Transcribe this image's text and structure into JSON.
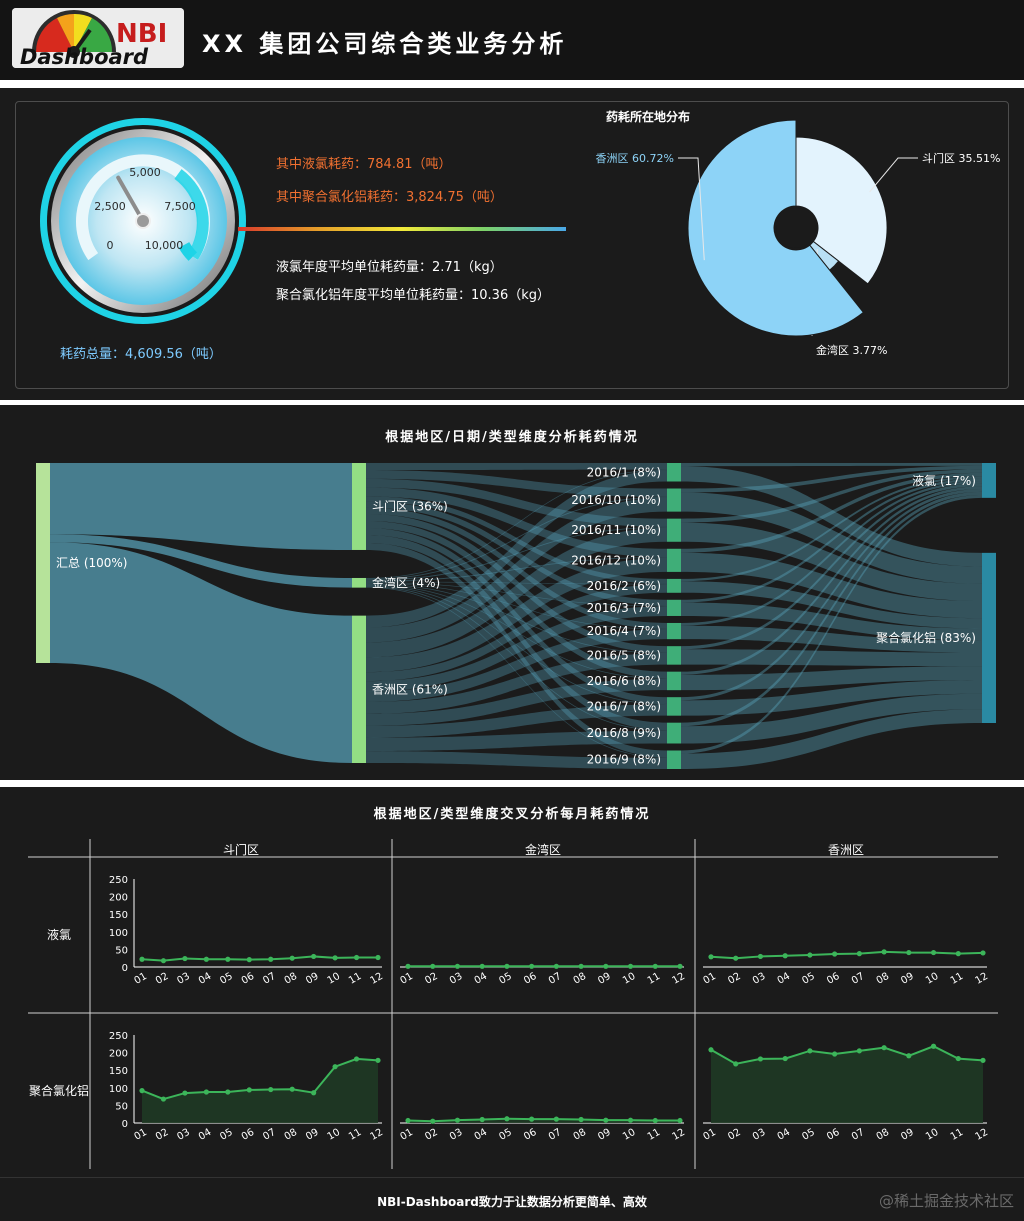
{
  "header": {
    "title": "XX 集团公司综合类业务分析",
    "logo_top": "NBI",
    "logo_bottom": "Dashboard"
  },
  "overview": {
    "liquid_chlorine_label": "其中液氯耗药：784.81（吨）",
    "pac_label": "其中聚合氯化铝耗药：3,824.75（吨）",
    "liquid_chlorine_unit_label": "液氯年度平均单位耗药量：2.71（kg）",
    "pac_unit_label": "聚合氯化铝年度平均单位耗药量：10.36（kg）",
    "total_label": "耗药总量：4,609.56（吨）"
  },
  "gauge": {
    "value": 4609.56,
    "min": 0,
    "max": 10000,
    "tick_labels": [
      "0",
      "2,500",
      "5,000",
      "7,500",
      "10,000"
    ]
  },
  "pie": {
    "title": "药耗所在地分布",
    "slices": [
      {
        "name": "斗门区",
        "percent": 35.51,
        "label": "斗门区 35.51%",
        "color": "#e3f3fd"
      },
      {
        "name": "金湾区",
        "percent": 3.77,
        "label": "金湾区 3.77%",
        "color": "#b9e0f5"
      },
      {
        "name": "香洲区",
        "percent": 60.72,
        "label": "香洲区 60.72%",
        "color": "#8dd3f7"
      }
    ]
  },
  "sankey": {
    "title": "根据地区/日期/类型维度分析耗药情况",
    "total": {
      "label": "汇总 (100%)"
    },
    "regions": [
      {
        "name": "斗门区",
        "label": "斗门区 (36%)",
        "pct": 36
      },
      {
        "name": "金湾区",
        "label": "金湾区 (4%)",
        "pct": 4
      },
      {
        "name": "香洲区",
        "label": "香洲区 (61%)",
        "pct": 61
      }
    ],
    "months": [
      {
        "label": "2016/1 (8%)",
        "pct": 8
      },
      {
        "label": "2016/10 (10%)",
        "pct": 10
      },
      {
        "label": "2016/11 (10%)",
        "pct": 10
      },
      {
        "label": "2016/12 (10%)",
        "pct": 10
      },
      {
        "label": "2016/2 (6%)",
        "pct": 6
      },
      {
        "label": "2016/3 (7%)",
        "pct": 7
      },
      {
        "label": "2016/4 (7%)",
        "pct": 7
      },
      {
        "label": "2016/5 (8%)",
        "pct": 8
      },
      {
        "label": "2016/6 (8%)",
        "pct": 8
      },
      {
        "label": "2016/7 (8%)",
        "pct": 8
      },
      {
        "label": "2016/8 (9%)",
        "pct": 9
      },
      {
        "label": "2016/9 (8%)",
        "pct": 8
      }
    ],
    "types": [
      {
        "name": "液氯",
        "label": "液氯 (17%)",
        "pct": 17
      },
      {
        "name": "聚合氯化铝",
        "label": "聚合氯化铝 (83%)",
        "pct": 83
      }
    ]
  },
  "chart_data": [
    {
      "type": "line",
      "title": "根据地区/类型维度交叉分析每月耗药情况",
      "columns": [
        "斗门区",
        "金湾区",
        "香洲区"
      ],
      "rows": [
        "液氯",
        "聚合氯化铝"
      ],
      "x": [
        "01",
        "02",
        "03",
        "04",
        "05",
        "06",
        "07",
        "08",
        "09",
        "10",
        "11",
        "12"
      ],
      "ylim": [
        0,
        250
      ],
      "yticks": [
        "250",
        "200",
        "150",
        "100",
        "50",
        "0"
      ],
      "series": [
        {
          "name": "斗门区",
          "row": "液氯",
          "values": [
            22,
            18,
            24,
            22,
            22,
            21,
            22,
            25,
            30,
            26,
            27,
            27
          ]
        },
        {
          "name": "金湾区",
          "row": "液氯",
          "values": [
            2,
            2,
            2,
            2,
            2,
            2,
            2,
            2,
            2,
            2,
            2,
            2
          ]
        },
        {
          "name": "香洲区",
          "row": "液氯",
          "values": [
            29,
            25,
            30,
            32,
            34,
            37,
            38,
            43,
            41,
            41,
            38,
            40
          ]
        },
        {
          "name": "斗门区",
          "row": "聚合氯化铝",
          "values": [
            92,
            68,
            85,
            88,
            88,
            94,
            95,
            96,
            86,
            160,
            182,
            178
          ]
        },
        {
          "name": "金湾区",
          "row": "聚合氯化铝",
          "values": [
            7,
            5,
            8,
            10,
            12,
            11,
            11,
            10,
            8,
            8,
            7,
            7
          ]
        },
        {
          "name": "香洲区",
          "row": "聚合氯化铝",
          "values": [
            208,
            168,
            182,
            183,
            205,
            196,
            205,
            214,
            191,
            218,
            183,
            178
          ]
        }
      ],
      "area_rows": [
        "聚合氯化铝"
      ],
      "line_color": "#3cb55a",
      "area_color": "#1f3a25"
    }
  ],
  "footer": {
    "slogan": "NBI-Dashboard致力于让数据分析更简单、高效",
    "watermark": "@稀土掘金技术社区"
  }
}
